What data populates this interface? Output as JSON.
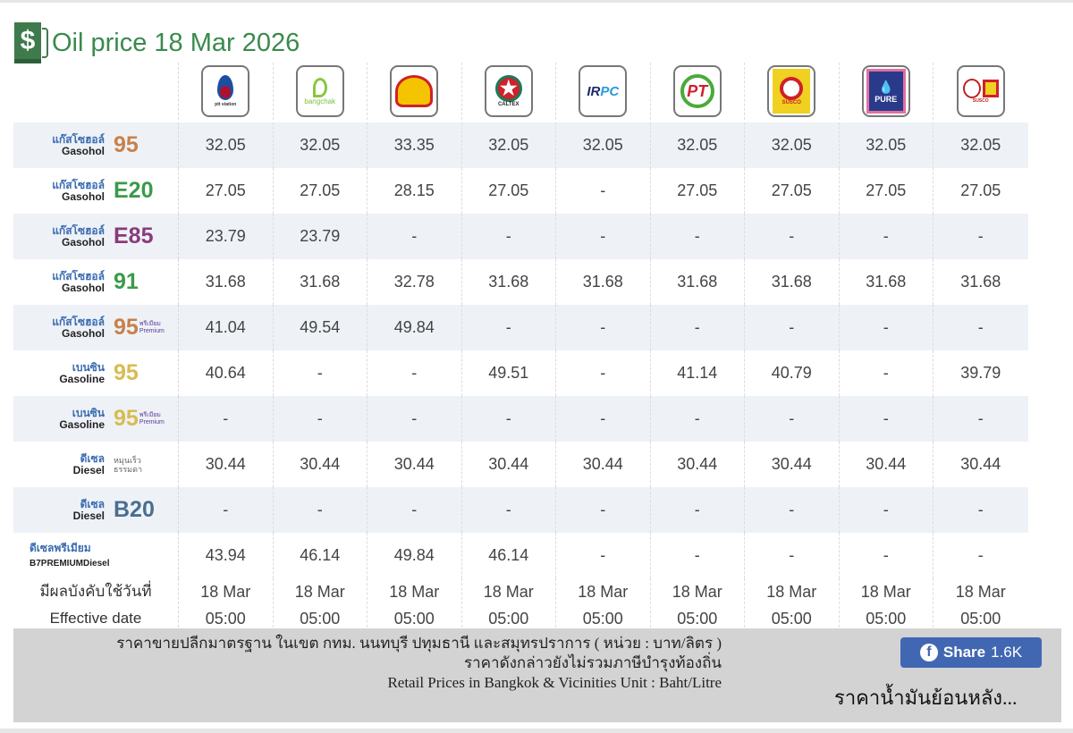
{
  "header": {
    "title": "Oil price 18 Mar 2026",
    "icon": "fuel-pump-dollar-icon"
  },
  "brands": [
    {
      "name": "PTT",
      "logo_text": "ptt station",
      "color": "#1a4fa0"
    },
    {
      "name": "Bangchak",
      "logo_text": "bangchak",
      "color": "#7cbf3a"
    },
    {
      "name": "Shell",
      "logo_text": "",
      "color": "#f5c400"
    },
    {
      "name": "Caltex",
      "logo_text": "CALTEX",
      "color": "#d0202a"
    },
    {
      "name": "IRPC",
      "logo_text": "IRPC",
      "color": "#1a2a6a"
    },
    {
      "name": "PT",
      "logo_text": "PT",
      "color": "#d0202a"
    },
    {
      "name": "Susco",
      "logo_text": "SUSCO",
      "color": "#f0d020"
    },
    {
      "name": "Pure",
      "logo_text": "PURE",
      "color": "#2a3a8a"
    },
    {
      "name": "Susco Dealers",
      "logo_text": "SUSCO",
      "color": "#c02020"
    }
  ],
  "fuels": [
    {
      "th": "แก๊สโซฮอล์",
      "en": "Gasohol",
      "grade": "95",
      "sub": "",
      "color": "#c8804a",
      "prices": [
        "32.05",
        "32.05",
        "33.35",
        "32.05",
        "32.05",
        "32.05",
        "32.05",
        "32.05",
        "32.05"
      ]
    },
    {
      "th": "แก๊สโซฮอล์",
      "en": "Gasohol",
      "grade": "E20",
      "sub": "",
      "color": "#3a9a4a",
      "prices": [
        "27.05",
        "27.05",
        "28.15",
        "27.05",
        "-",
        "27.05",
        "27.05",
        "27.05",
        "27.05"
      ]
    },
    {
      "th": "แก๊สโซฮอล์",
      "en": "Gasohol",
      "grade": "E85",
      "sub": "",
      "color": "#8a3a7a",
      "prices": [
        "23.79",
        "23.79",
        "-",
        "-",
        "-",
        "-",
        "-",
        "-",
        "-"
      ]
    },
    {
      "th": "แก๊สโซฮอล์",
      "en": "Gasohol",
      "grade": "91",
      "sub": "",
      "color": "#3a9a4a",
      "prices": [
        "31.68",
        "31.68",
        "32.78",
        "31.68",
        "31.68",
        "31.68",
        "31.68",
        "31.68",
        "31.68"
      ]
    },
    {
      "th": "แก๊สโซฮอล์",
      "en": "Gasohol",
      "grade": "95",
      "sub": "พรีเมียม Premium",
      "color": "#c8804a",
      "prices": [
        "41.04",
        "49.54",
        "49.84",
        "-",
        "-",
        "-",
        "-",
        "-",
        "-"
      ]
    },
    {
      "th": "เบนซิน",
      "en": "Gasoline",
      "grade": "95",
      "sub": "",
      "color": "#d8bc50",
      "prices": [
        "40.64",
        "-",
        "-",
        "49.51",
        "-",
        "41.14",
        "40.79",
        "-",
        "39.79"
      ]
    },
    {
      "th": "เบนซิน",
      "en": "Gasoline",
      "grade": "95",
      "sub": "พรีเมียม Premium",
      "color": "#d8bc50",
      "prices": [
        "-",
        "-",
        "-",
        "-",
        "-",
        "-",
        "-",
        "-",
        "-"
      ]
    },
    {
      "th": "ดีเซล",
      "en": "Diesel",
      "grade": "",
      "sub": "หมุนเร็ว ธรรมดา",
      "color": "#666666",
      "prices": [
        "30.44",
        "30.44",
        "30.44",
        "30.44",
        "30.44",
        "30.44",
        "30.44",
        "30.44",
        "30.44"
      ]
    },
    {
      "th": "ดีเซล",
      "en": "Diesel",
      "grade": "B20",
      "sub": "",
      "color": "#4a6e90",
      "prices": [
        "-",
        "-",
        "-",
        "-",
        "-",
        "-",
        "-",
        "-",
        "-"
      ]
    },
    {
      "th": "ดีเซลพรีเมียม",
      "en": "B7PREMIUMDiesel",
      "grade": "",
      "sub": "",
      "color": "#3a6bb0",
      "wide": true,
      "prices": [
        "43.94",
        "46.14",
        "49.84",
        "46.14",
        "-",
        "-",
        "-",
        "-",
        "-"
      ]
    }
  ],
  "effective": {
    "label_th": "มีผลบังคับใช้วันที่",
    "label_en": "Effective date",
    "dates": [
      "18 Mar",
      "18 Mar",
      "18 Mar",
      "18 Mar",
      "18 Mar",
      "18 Mar",
      "18 Mar",
      "18 Mar",
      "18 Mar"
    ],
    "times": [
      "05:00",
      "05:00",
      "05:00",
      "05:00",
      "05:00",
      "05:00",
      "05:00",
      "05:00",
      "05:00"
    ]
  },
  "footer": {
    "note1": "ราคาขายปลีกมาตรฐาน ในเขต กทม. นนทบุรี ปทุมธานี และสมุทรปราการ ( หน่วย : บาท/ลิตร )",
    "note2": "ราคาดังกล่าวยังไม่รวมภาษีบำรุงท้องถิ่น",
    "note3": "Retail Prices in Bangkok & Vicinities Unit : Baht/Litre",
    "share_label": "Share",
    "share_count": "1.6K",
    "history_link": "ราคาน้ำมันย้อนหลัง..."
  }
}
